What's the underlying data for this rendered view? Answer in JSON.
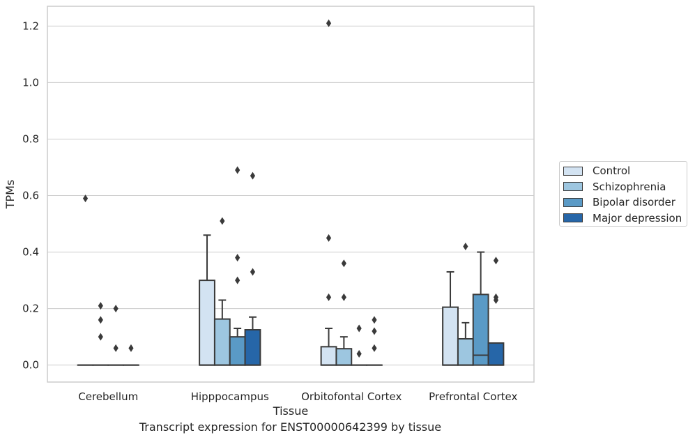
{
  "caption": "Transcript expression for ENST00000642399 by tissue",
  "chart_data": {
    "type": "box",
    "title": "",
    "xlabel": "Tissue",
    "ylabel": "TPMs",
    "ylim": [
      -0.06,
      1.27
    ],
    "yticks": [
      "0.0",
      "0.2",
      "0.4",
      "0.6",
      "0.8",
      "1.0",
      "1.2"
    ],
    "grid": "horizontal",
    "legend_position": "right",
    "categories": [
      "Cerebellum",
      "Hipppocampus",
      "Orbitofontal Cortex",
      "Prefrontal Cortex"
    ],
    "series": [
      {
        "name": "Control",
        "color": "#d3e3f2",
        "boxes": [
          {
            "q1": 0,
            "median": 0,
            "q3": 0,
            "whisker_low": 0,
            "whisker_high": 0,
            "outliers": [
              0.59
            ]
          },
          {
            "q1": 0,
            "median": 0,
            "q3": 0.3,
            "whisker_low": 0,
            "whisker_high": 0.46,
            "outliers": []
          },
          {
            "q1": 0,
            "median": 0,
            "q3": 0.065,
            "whisker_low": 0,
            "whisker_high": 0.13,
            "outliers": [
              0.24,
              0.45,
              1.21
            ]
          },
          {
            "q1": 0,
            "median": 0,
            "q3": 0.205,
            "whisker_low": 0,
            "whisker_high": 0.33,
            "outliers": []
          }
        ]
      },
      {
        "name": "Schizophrenia",
        "color": "#9dc6e0",
        "boxes": [
          {
            "q1": 0,
            "median": 0,
            "q3": 0,
            "whisker_low": 0,
            "whisker_high": 0,
            "outliers": [
              0.1,
              0.16,
              0.21
            ]
          },
          {
            "q1": 0,
            "median": 0,
            "q3": 0.163,
            "whisker_low": 0,
            "whisker_high": 0.23,
            "outliers": [
              0.51
            ]
          },
          {
            "q1": 0,
            "median": 0,
            "q3": 0.058,
            "whisker_low": 0,
            "whisker_high": 0.1,
            "outliers": [
              0.24,
              0.36
            ]
          },
          {
            "q1": 0,
            "median": 0,
            "q3": 0.093,
            "whisker_low": 0,
            "whisker_high": 0.15,
            "outliers": [
              0.42
            ]
          }
        ]
      },
      {
        "name": "Bipolar disorder",
        "color": "#5a9ac6",
        "boxes": [
          {
            "q1": 0,
            "median": 0,
            "q3": 0,
            "whisker_low": 0,
            "whisker_high": 0,
            "outliers": [
              0.06,
              0.2
            ]
          },
          {
            "q1": 0,
            "median": 0,
            "q3": 0.1,
            "whisker_low": 0,
            "whisker_high": 0.13,
            "outliers": [
              0.3,
              0.38,
              0.69
            ]
          },
          {
            "q1": 0,
            "median": 0,
            "q3": 0,
            "whisker_low": 0,
            "whisker_high": 0,
            "outliers": [
              0.04,
              0.13
            ]
          },
          {
            "q1": 0,
            "median": 0.035,
            "q3": 0.25,
            "whisker_low": 0,
            "whisker_high": 0.4,
            "outliers": []
          }
        ]
      },
      {
        "name": "Major depression",
        "color": "#2666a8",
        "boxes": [
          {
            "q1": 0,
            "median": 0,
            "q3": 0,
            "whisker_low": 0,
            "whisker_high": 0,
            "outliers": [
              0.06
            ]
          },
          {
            "q1": 0,
            "median": 0,
            "q3": 0.125,
            "whisker_low": 0,
            "whisker_high": 0.17,
            "outliers": [
              0.33,
              0.67
            ]
          },
          {
            "q1": 0,
            "median": 0,
            "q3": 0,
            "whisker_low": 0,
            "whisker_high": 0,
            "outliers": [
              0.06,
              0.12,
              0.16
            ]
          },
          {
            "q1": 0,
            "median": 0,
            "q3": 0.078,
            "whisker_low": 0,
            "whisker_high": 0.078,
            "outliers": [
              0.23,
              0.24,
              0.37
            ]
          }
        ]
      }
    ]
  }
}
